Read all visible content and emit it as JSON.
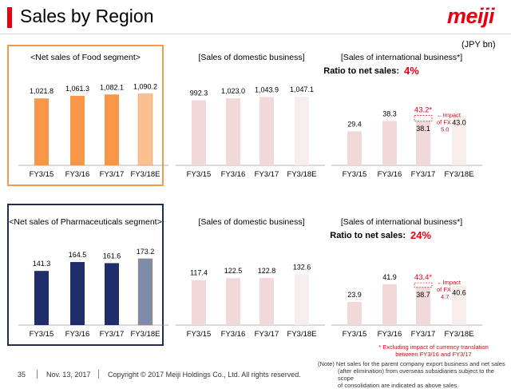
{
  "header": {
    "title": "Sales by Region",
    "logo": "meiji",
    "unit": "(JPY bn)"
  },
  "colors": {
    "accent": "#e60012",
    "food_bar": "#f79646",
    "food_bar_est": "#fac090",
    "pharma_bar": "#1f2d6b",
    "pharma_bar_est": "#7f8bab",
    "domestic_bar": "#f2d9d9",
    "domestic_bar_est": "#f8eded",
    "impact_red": "#e60012"
  },
  "chart_data": [
    {
      "id": "food-total",
      "type": "bar",
      "title": "<Net sales of Food segment>",
      "categories": [
        "FY3/15",
        "FY3/16",
        "FY3/17",
        "FY3/18E"
      ],
      "values": [
        1021.8,
        1061.3,
        1082.1,
        1090.2
      ],
      "labels": [
        "1,021.8",
        "1,061.3",
        "1,082.1",
        "1,090.2"
      ],
      "ylim": [
        0,
        1200
      ]
    },
    {
      "id": "food-domestic",
      "type": "bar",
      "title": "[Sales of domestic business]",
      "categories": [
        "FY3/15",
        "FY3/16",
        "FY3/17",
        "FY3/18E"
      ],
      "values": [
        992.3,
        1023.0,
        1043.9,
        1047.1
      ],
      "labels": [
        "992.3",
        "1,023.0",
        "1,043.9",
        "1,047.1"
      ],
      "ylim": [
        0,
        1200
      ]
    },
    {
      "id": "food-international",
      "type": "bar",
      "title": "[Sales of international business*]",
      "ratio_label": "Ratio to net sales:",
      "ratio_value": "4%",
      "categories": [
        "FY3/15",
        "FY3/16",
        "FY3/17",
        "FY3/18E"
      ],
      "values": [
        29.4,
        38.3,
        38.1,
        43.0
      ],
      "labels": [
        "29.4",
        "38.3",
        "38.1",
        "43.0"
      ],
      "fx_total": 43.2,
      "fx_total_label": "43.2*",
      "fx_note": [
        "←Impact",
        "of FX",
        "5.0"
      ],
      "ylim": [
        0,
        100
      ]
    },
    {
      "id": "pharma-total",
      "type": "bar",
      "title": "<Net sales of Pharmaceuticals segment>",
      "categories": [
        "FY3/15",
        "FY3/16",
        "FY3/17",
        "FY3/18E"
      ],
      "values": [
        141.3,
        164.5,
        161.6,
        173.2
      ],
      "labels": [
        "141.3",
        "164.5",
        "161.6",
        "173.2"
      ],
      "ylim": [
        0,
        260
      ]
    },
    {
      "id": "pharma-domestic",
      "type": "bar",
      "title": "[Sales of domestic business]",
      "categories": [
        "FY3/15",
        "FY3/16",
        "FY3/17",
        "FY3/18E"
      ],
      "values": [
        117.4,
        122.5,
        122.8,
        132.6
      ],
      "labels": [
        "117.4",
        "122.5",
        "122.8",
        "132.6"
      ],
      "ylim": [
        0,
        260
      ]
    },
    {
      "id": "pharma-international",
      "type": "bar",
      "title": "[Sales of international business*]",
      "ratio_label": "Ratio to net sales:",
      "ratio_value": "24%",
      "categories": [
        "FY3/15",
        "FY3/16",
        "FY3/17",
        "FY3/18E"
      ],
      "values": [
        23.9,
        41.9,
        38.7,
        40.6
      ],
      "labels": [
        "23.9",
        "41.9",
        "38.7",
        "40.6"
      ],
      "fx_total": 43.4,
      "fx_total_label": "43.4*",
      "fx_note": [
        "←Impact",
        "of FX",
        "4.7"
      ],
      "ylim": [
        0,
        100
      ]
    }
  ],
  "notes": {
    "fx_footnote": [
      "* Excluding impact of currency translation",
      "between FY3/16 and FY3/17"
    ],
    "note_lines": [
      "(Note) Net sales for the parent company export business and net sales",
      "(after elimination) from overseas subsidiaries subject to the scope",
      "of consolidation are indicated as above sales."
    ]
  },
  "footer": {
    "page": "35",
    "date": "Nov. 13, 2017",
    "copyright": "Copyright © 2017 Meiji Holdings Co., Ltd. All rights reserved."
  }
}
